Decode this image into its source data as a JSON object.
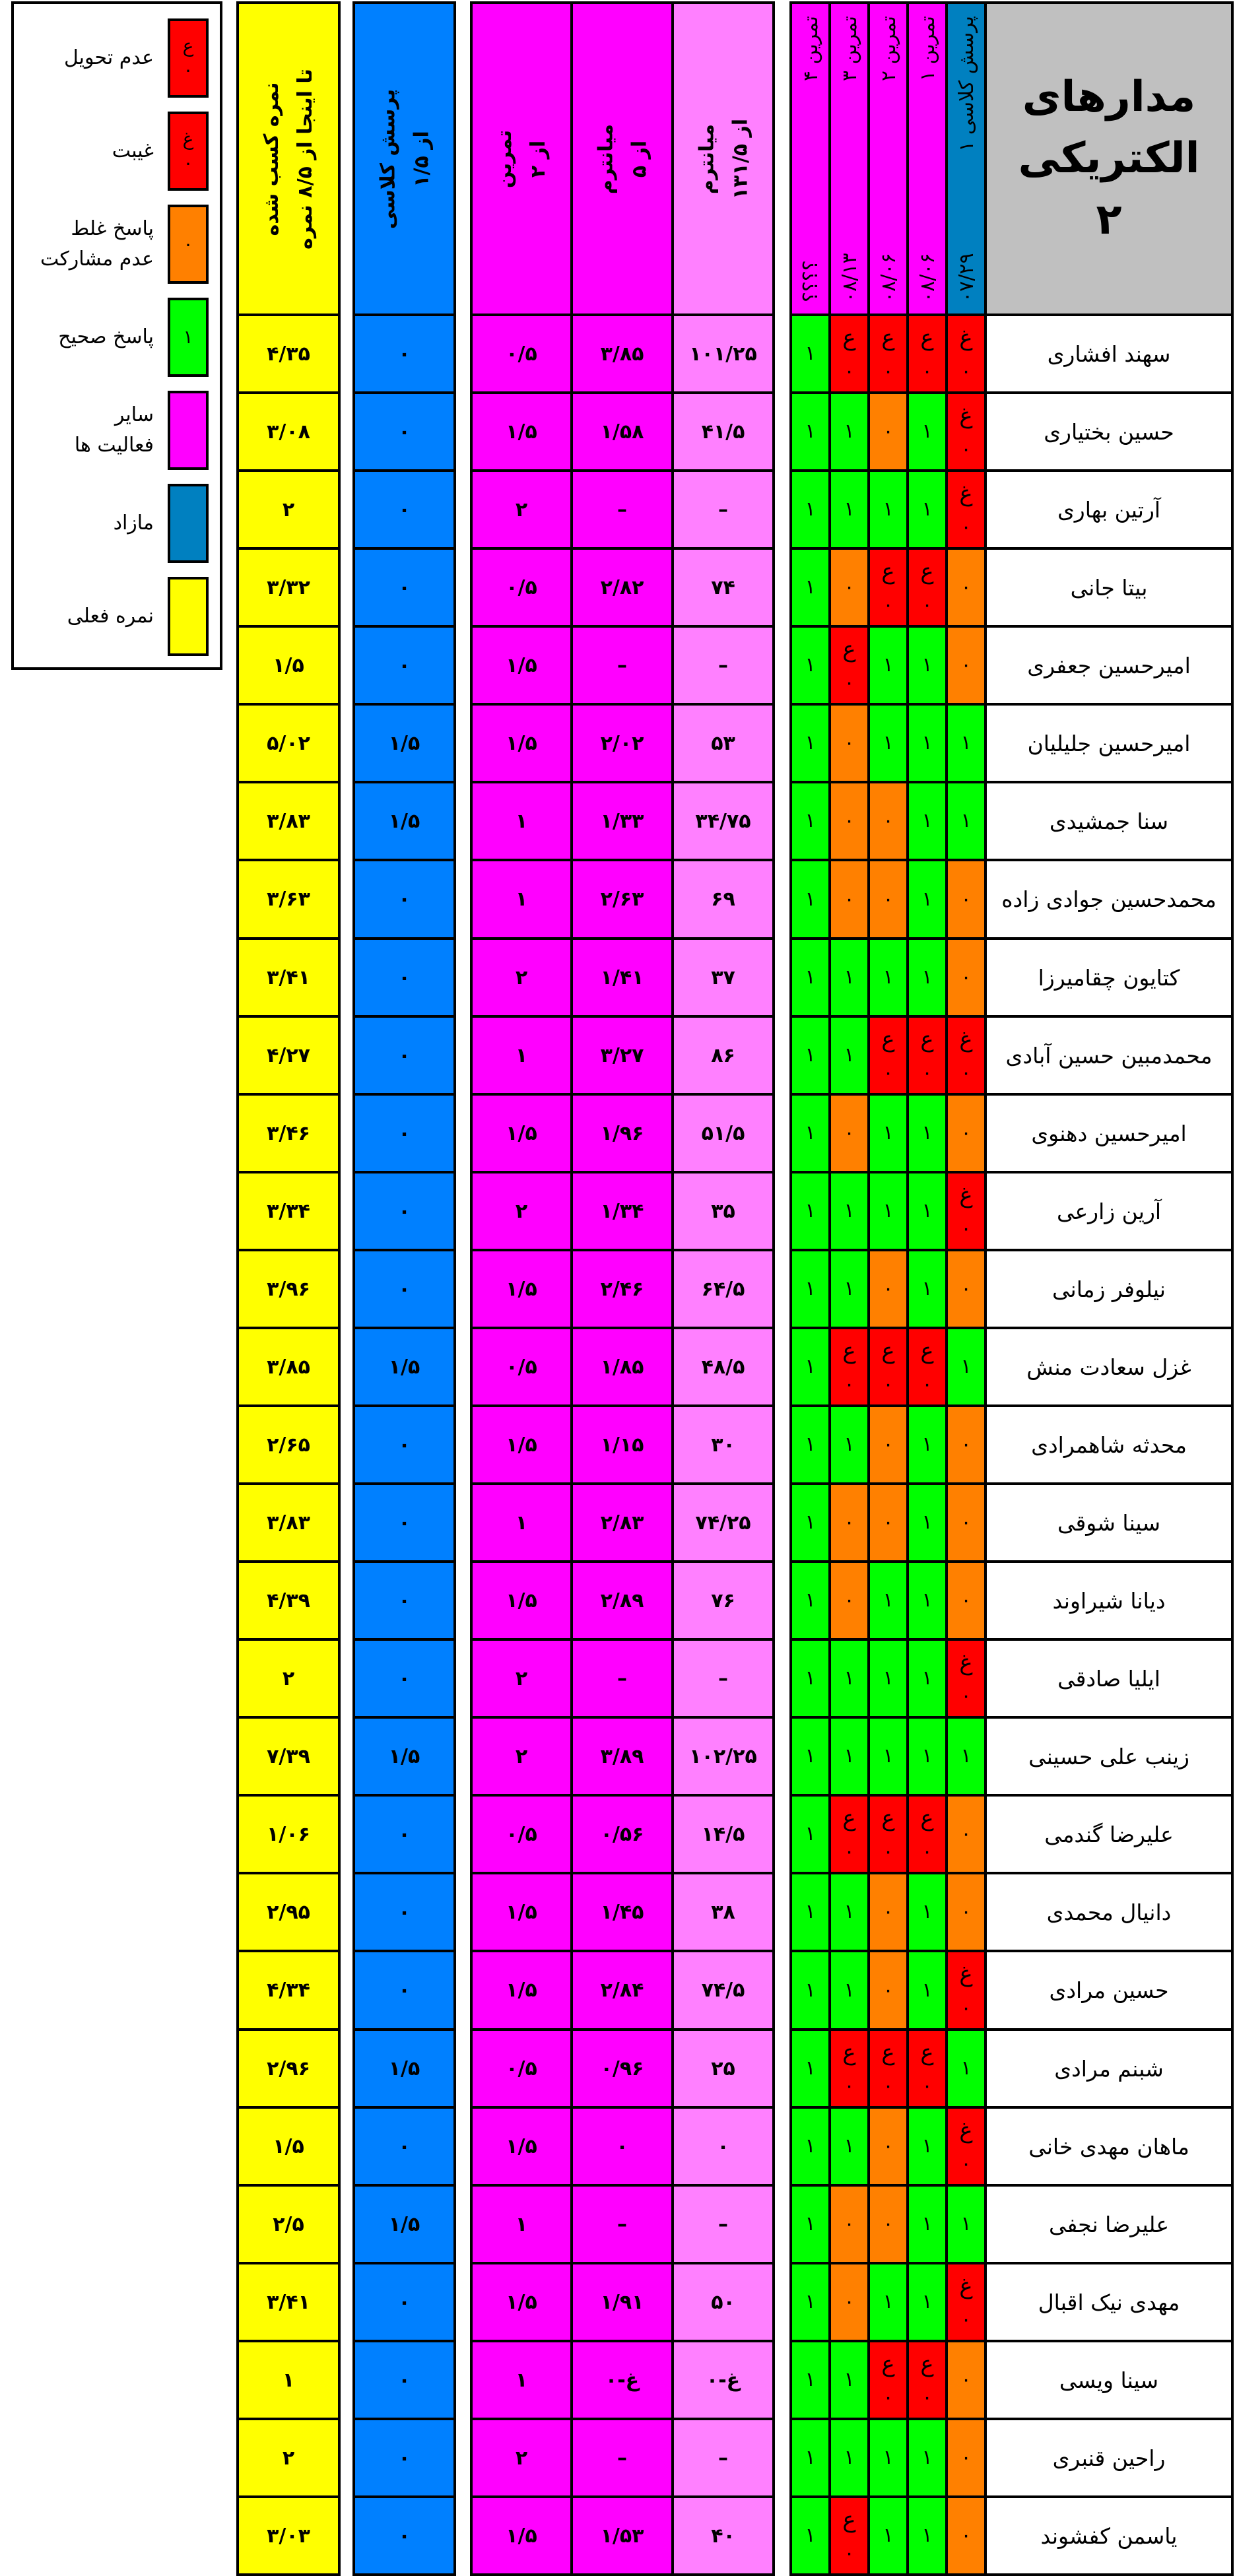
{
  "title": [
    "مدارهای",
    "الکتریکی",
    "۲"
  ],
  "colors": {
    "not_submitted": "#ff0000",
    "absent": "#ff0000",
    "wrong": "#ff8000",
    "correct": "#00ff00",
    "other_activities": "#ff00ff",
    "midterm_raw": "#ff80ff",
    "extra": "#0080ff",
    "extra_header": "#0080c0",
    "current_grade": "#ffff00",
    "title_bg": "#c0c0c0"
  },
  "legend": [
    {
      "label": "عدم تحویل",
      "swatch": [
        "ع",
        "۰"
      ],
      "color": "#ff0000"
    },
    {
      "label": "غیبت",
      "swatch": [
        "غ",
        "۰"
      ],
      "color": "#ff0000"
    },
    {
      "label": "پاسخ غلط\nعدم مشارکت",
      "swatch": [
        "۰"
      ],
      "color": "#ff8000"
    },
    {
      "label": "پاسخ صحیح",
      "swatch": [
        "۱"
      ],
      "color": "#00ff00"
    },
    {
      "label": "سایر\nفعالیت ها",
      "swatch": [],
      "color": "#ff00ff"
    },
    {
      "label": "مازاد",
      "swatch": [],
      "color": "#0080c0"
    },
    {
      "label": "نمره فعلی",
      "swatch": [],
      "color": "#ffff00"
    }
  ],
  "activity_headers": [
    {
      "label": "پرسش کلاسی ۱",
      "date": "۰۷/۲۹"
    },
    {
      "label": "تمرین ۱",
      "date": "۰۸/۰۶"
    },
    {
      "label": "تمرین ۲",
      "date": "۰۸/۰۶"
    },
    {
      "label": "تمرین ۳",
      "date": "۰۸/۱۳"
    },
    {
      "label": "تمرین ۴",
      "date": "؟؟؟؟"
    }
  ],
  "score_headers": {
    "midterm_raw": [
      "میانترم",
      "از ۱۳۱/۵"
    ],
    "midterm": [
      "میانترم",
      "از ۵"
    ],
    "exercises": [
      "تمرین",
      "از ۲"
    ],
    "quiz": [
      "پرسش کلاسی",
      "از ۱/۵"
    ],
    "total": [
      "نمره کسب شده",
      "تا اینجا از ۸/۵ نمره"
    ]
  },
  "codes": {
    "A": {
      "mark": "ع",
      "value": "۰",
      "status": "not_submitted"
    },
    "G": {
      "mark": "غ",
      "value": "۰",
      "status": "absent"
    },
    "0": {
      "mark": "",
      "value": "۰",
      "status": "wrong"
    },
    "1": {
      "mark": "",
      "value": "۱",
      "status": "correct"
    }
  },
  "students": [
    {
      "name": "سهند افشاری",
      "activities": [
        "G",
        "A",
        "A",
        "A",
        "1"
      ],
      "midterm_raw": "۱۰۱/۲۵",
      "midterm": "۳/۸۵",
      "exercises": "۰/۵",
      "quiz": "۰",
      "total": "۴/۳۵"
    },
    {
      "name": "حسین بختیاری",
      "activities": [
        "G",
        "1",
        "0",
        "1",
        "1"
      ],
      "midterm_raw": "۴۱/۵",
      "midterm": "۱/۵۸",
      "exercises": "۱/۵",
      "quiz": "۰",
      "total": "۳/۰۸"
    },
    {
      "name": "آرتین بهاری",
      "activities": [
        "G",
        "1",
        "1",
        "1",
        "1"
      ],
      "midterm_raw": "–",
      "midterm": "–",
      "exercises": "۲",
      "quiz": "۰",
      "total": "۲"
    },
    {
      "name": "بیتا جانی",
      "activities": [
        "0",
        "A",
        "A",
        "0",
        "1"
      ],
      "midterm_raw": "۷۴",
      "midterm": "۲/۸۲",
      "exercises": "۰/۵",
      "quiz": "۰",
      "total": "۳/۳۲"
    },
    {
      "name": "امیرحسین جعفری",
      "activities": [
        "0",
        "1",
        "1",
        "A",
        "1"
      ],
      "midterm_raw": "–",
      "midterm": "–",
      "exercises": "۱/۵",
      "quiz": "۰",
      "total": "۱/۵"
    },
    {
      "name": "امیرحسین جلیلیان",
      "activities": [
        "1",
        "1",
        "1",
        "0",
        "1"
      ],
      "midterm_raw": "۵۳",
      "midterm": "۲/۰۲",
      "exercises": "۱/۵",
      "quiz": "۱/۵",
      "total": "۵/۰۲"
    },
    {
      "name": "سنا جمشیدی",
      "activities": [
        "1",
        "1",
        "0",
        "0",
        "1"
      ],
      "midterm_raw": "۳۴/۷۵",
      "midterm": "۱/۳۳",
      "exercises": "۱",
      "quiz": "۱/۵",
      "total": "۳/۸۳"
    },
    {
      "name": "محمدحسین جوادی زاده",
      "activities": [
        "0",
        "1",
        "0",
        "0",
        "1"
      ],
      "midterm_raw": "۶۹",
      "midterm": "۲/۶۳",
      "exercises": "۱",
      "quiz": "۰",
      "total": "۳/۶۳"
    },
    {
      "name": "کتایون چقامیرزا",
      "activities": [
        "0",
        "1",
        "1",
        "1",
        "1"
      ],
      "midterm_raw": "۳۷",
      "midterm": "۱/۴۱",
      "exercises": "۲",
      "quiz": "۰",
      "total": "۳/۴۱"
    },
    {
      "name": "محمدمبین حسین آبادی",
      "activities": [
        "G",
        "A",
        "A",
        "1",
        "1"
      ],
      "midterm_raw": "۸۶",
      "midterm": "۳/۲۷",
      "exercises": "۱",
      "quiz": "۰",
      "total": "۴/۲۷"
    },
    {
      "name": "امیرحسین دهنوی",
      "activities": [
        "0",
        "1",
        "1",
        "0",
        "1"
      ],
      "midterm_raw": "۵۱/۵",
      "midterm": "۱/۹۶",
      "exercises": "۱/۵",
      "quiz": "۰",
      "total": "۳/۴۶"
    },
    {
      "name": "آرین زارعی",
      "activities": [
        "G",
        "1",
        "1",
        "1",
        "1"
      ],
      "midterm_raw": "۳۵",
      "midterm": "۱/۳۴",
      "exercises": "۲",
      "quiz": "۰",
      "total": "۳/۳۴"
    },
    {
      "name": "نیلوفر زمانی",
      "activities": [
        "0",
        "1",
        "0",
        "1",
        "1"
      ],
      "midterm_raw": "۶۴/۵",
      "midterm": "۲/۴۶",
      "exercises": "۱/۵",
      "quiz": "۰",
      "total": "۳/۹۶"
    },
    {
      "name": "غزل سعادت منش",
      "activities": [
        "1",
        "A",
        "A",
        "A",
        "1"
      ],
      "midterm_raw": "۴۸/۵",
      "midterm": "۱/۸۵",
      "exercises": "۰/۵",
      "quiz": "۱/۵",
      "total": "۳/۸۵"
    },
    {
      "name": "محدثه شاهمرادی",
      "activities": [
        "0",
        "1",
        "0",
        "1",
        "1"
      ],
      "midterm_raw": "۳۰",
      "midterm": "۱/۱۵",
      "exercises": "۱/۵",
      "quiz": "۰",
      "total": "۲/۶۵"
    },
    {
      "name": "سینا شوقی",
      "activities": [
        "0",
        "1",
        "0",
        "0",
        "1"
      ],
      "midterm_raw": "۷۴/۲۵",
      "midterm": "۲/۸۳",
      "exercises": "۱",
      "quiz": "۰",
      "total": "۳/۸۳"
    },
    {
      "name": "دیانا شیراوند",
      "activities": [
        "0",
        "1",
        "1",
        "0",
        "1"
      ],
      "midterm_raw": "۷۶",
      "midterm": "۲/۸۹",
      "exercises": "۱/۵",
      "quiz": "۰",
      "total": "۴/۳۹"
    },
    {
      "name": "ایلیا صادقی",
      "activities": [
        "G",
        "1",
        "1",
        "1",
        "1"
      ],
      "midterm_raw": "–",
      "midterm": "–",
      "exercises": "۲",
      "quiz": "۰",
      "total": "۲"
    },
    {
      "name": "زینب علی حسینی",
      "activities": [
        "1",
        "1",
        "1",
        "1",
        "1"
      ],
      "midterm_raw": "۱۰۲/۲۵",
      "midterm": "۳/۸۹",
      "exercises": "۲",
      "quiz": "۱/۵",
      "total": "۷/۳۹"
    },
    {
      "name": "علیرضا گندمی",
      "activities": [
        "0",
        "A",
        "A",
        "A",
        "1"
      ],
      "midterm_raw": "۱۴/۵",
      "midterm": "۰/۵۶",
      "exercises": "۰/۵",
      "quiz": "۰",
      "total": "۱/۰۶"
    },
    {
      "name": "دانیال محمدی",
      "activities": [
        "0",
        "1",
        "0",
        "1",
        "1"
      ],
      "midterm_raw": "۳۸",
      "midterm": "۱/۴۵",
      "exercises": "۱/۵",
      "quiz": "۰",
      "total": "۲/۹۵"
    },
    {
      "name": "حسین مرادی",
      "activities": [
        "G",
        "1",
        "0",
        "1",
        "1"
      ],
      "midterm_raw": "۷۴/۵",
      "midterm": "۲/۸۴",
      "exercises": "۱/۵",
      "quiz": "۰",
      "total": "۴/۳۴"
    },
    {
      "name": "شبنم مرادی",
      "activities": [
        "1",
        "A",
        "A",
        "A",
        "1"
      ],
      "midterm_raw": "۲۵",
      "midterm": "۰/۹۶",
      "exercises": "۰/۵",
      "quiz": "۱/۵",
      "total": "۲/۹۶"
    },
    {
      "name": "ماهان مهدی خانی",
      "activities": [
        "G",
        "1",
        "0",
        "1",
        "1"
      ],
      "midterm_raw": "۰",
      "midterm": "۰",
      "exercises": "۱/۵",
      "quiz": "۰",
      "total": "۱/۵"
    },
    {
      "name": "علیرضا نجفی",
      "activities": [
        "1",
        "1",
        "0",
        "0",
        "1"
      ],
      "midterm_raw": "–",
      "midterm": "–",
      "exercises": "۱",
      "quiz": "۱/۵",
      "total": "۲/۵"
    },
    {
      "name": "مهدی نیک اقبال",
      "activities": [
        "G",
        "1",
        "1",
        "0",
        "1"
      ],
      "midterm_raw": "۵۰",
      "midterm": "۱/۹۱",
      "exercises": "۱/۵",
      "quiz": "۰",
      "total": "۳/۴۱"
    },
    {
      "name": "سینا ویسی",
      "activities": [
        "0",
        "A",
        "A",
        "1",
        "1"
      ],
      "midterm_raw": "غ-۰",
      "midterm": "غ-۰",
      "exercises": "۱",
      "quiz": "۰",
      "total": "۱"
    },
    {
      "name": "راحین قنبری",
      "activities": [
        "0",
        "1",
        "1",
        "1",
        "1"
      ],
      "midterm_raw": "–",
      "midterm": "–",
      "exercises": "۲",
      "quiz": "۰",
      "total": "۲"
    },
    {
      "name": "یاسمن کفشوند",
      "activities": [
        "0",
        "1",
        "1",
        "A",
        "1"
      ],
      "midterm_raw": "۴۰",
      "midterm": "۱/۵۳",
      "exercises": "۱/۵",
      "quiz": "۰",
      "total": "۳/۰۳"
    }
  ]
}
